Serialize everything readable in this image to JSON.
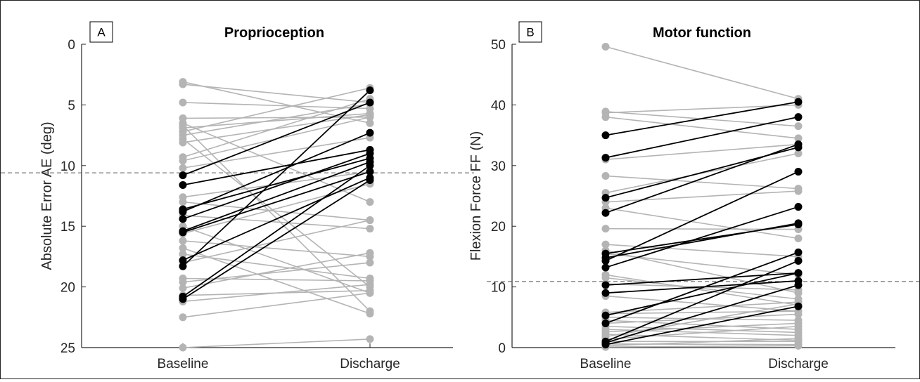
{
  "chart_data": [
    {
      "type": "line",
      "panel_label": "A",
      "title": "Proprioception",
      "xlabel": "",
      "ylabel": "Absolute Error AE (deg)",
      "categories": [
        "Baseline",
        "Discharge"
      ],
      "ylim": [
        0,
        25
      ],
      "y_reversed": true,
      "yticks": [
        "0",
        "5",
        "10",
        "15",
        "20",
        "25"
      ],
      "reference_line": 10.6,
      "grid": false,
      "colors": {
        "gray": "#b4b4b4",
        "black": "#000000",
        "reference": "#555555"
      },
      "series_gray": [
        [
          3.1,
          6.5
        ],
        [
          3.3,
          4.8
        ],
        [
          4.8,
          5.3
        ],
        [
          6.1,
          6.0
        ],
        [
          6.5,
          13.0
        ],
        [
          6.7,
          22.0
        ],
        [
          6.9,
          5.7
        ],
        [
          7.2,
          3.6
        ],
        [
          7.5,
          4.9
        ],
        [
          7.8,
          20.0
        ],
        [
          8.1,
          5.8
        ],
        [
          9.3,
          4.5
        ],
        [
          9.6,
          6.0
        ],
        [
          10.2,
          7.7
        ],
        [
          12.6,
          10.5
        ],
        [
          13.0,
          14.5
        ],
        [
          14.1,
          15.2
        ],
        [
          15.0,
          20.5
        ],
        [
          15.6,
          11.5
        ],
        [
          16.2,
          17.5
        ],
        [
          16.8,
          22.2
        ],
        [
          17.3,
          19.3
        ],
        [
          18.0,
          14.5
        ],
        [
          19.3,
          19.5
        ],
        [
          19.6,
          18.0
        ],
        [
          20.1,
          17.2
        ],
        [
          20.7,
          20.3
        ],
        [
          21.2,
          19.8
        ],
        [
          22.5,
          20.5
        ],
        [
          25.0,
          24.3
        ]
      ],
      "series_black": [
        [
          10.8,
          4.8
        ],
        [
          11.6,
          8.7
        ],
        [
          13.6,
          9.4
        ],
        [
          13.8,
          7.3
        ],
        [
          14.4,
          9.0
        ],
        [
          15.4,
          9.7
        ],
        [
          15.5,
          10.5
        ],
        [
          17.8,
          11.0
        ],
        [
          18.3,
          3.8
        ],
        [
          20.8,
          10.0
        ],
        [
          21.0,
          11.2
        ]
      ]
    },
    {
      "type": "line",
      "panel_label": "B",
      "title": "Motor function",
      "xlabel": "",
      "ylabel": "Flexion Force FF (N)",
      "categories": [
        "Baseline",
        "Discharge"
      ],
      "ylim": [
        0,
        50
      ],
      "y_reversed": false,
      "yticks": [
        "0",
        "10",
        "20",
        "30",
        "40",
        "50"
      ],
      "reference_line": 10.9,
      "grid": false,
      "colors": {
        "gray": "#b4b4b4",
        "black": "#000000",
        "reference": "#555555"
      },
      "series_gray": [
        [
          49.6,
          41.0
        ],
        [
          38.9,
          36.5
        ],
        [
          38.7,
          40.0
        ],
        [
          38.0,
          34.5
        ],
        [
          31.0,
          33.5
        ],
        [
          28.3,
          26.2
        ],
        [
          25.5,
          32.0
        ],
        [
          24.0,
          25.8
        ],
        [
          23.0,
          18.0
        ],
        [
          19.6,
          19.5
        ],
        [
          17.0,
          15.0
        ],
        [
          16.0,
          9.0
        ],
        [
          15.5,
          12.0
        ],
        [
          12.0,
          7.0
        ],
        [
          11.5,
          8.0
        ],
        [
          10.5,
          9.5
        ],
        [
          8.5,
          6.0
        ],
        [
          5.8,
          7.5
        ],
        [
          5.6,
          6.0
        ],
        [
          5.0,
          4.5
        ],
        [
          4.5,
          3.0
        ],
        [
          4.0,
          5.5
        ],
        [
          3.5,
          2.5
        ],
        [
          3.0,
          2.0
        ],
        [
          2.6,
          4.0
        ],
        [
          2.2,
          1.2
        ],
        [
          1.8,
          7.2
        ],
        [
          1.4,
          3.5
        ],
        [
          1.0,
          1.0
        ],
        [
          0.6,
          0.5
        ],
        [
          0.3,
          1.5
        ],
        [
          0.1,
          0.3
        ]
      ],
      "series_black": [
        [
          35.0,
          40.5
        ],
        [
          31.3,
          38.0
        ],
        [
          24.7,
          33.0
        ],
        [
          22.2,
          33.5
        ],
        [
          15.5,
          20.3
        ],
        [
          14.8,
          20.5
        ],
        [
          14.3,
          29.0
        ],
        [
          13.2,
          23.2
        ],
        [
          10.3,
          12.3
        ],
        [
          9.0,
          11.0
        ],
        [
          5.3,
          12.3
        ],
        [
          4.0,
          15.7
        ],
        [
          1.0,
          14.3
        ],
        [
          0.8,
          10.3
        ],
        [
          0.5,
          6.8
        ]
      ]
    }
  ]
}
